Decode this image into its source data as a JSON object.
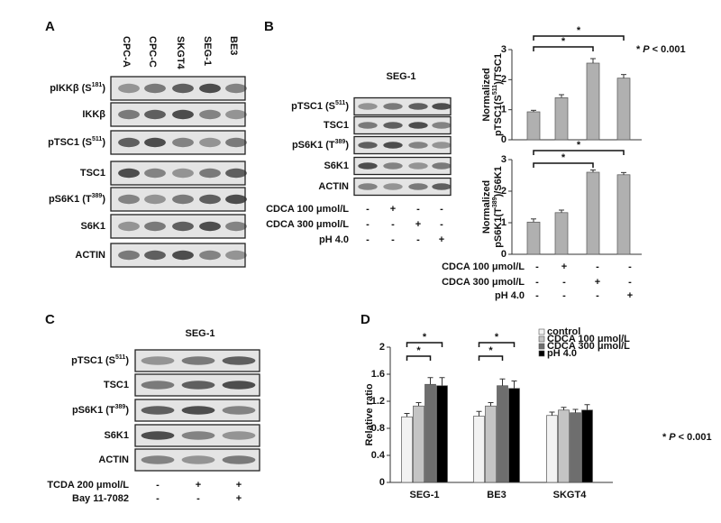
{
  "blots": [
    {
      "panel": "A",
      "lanes": [
        "CPC-A",
        "CPC-C",
        "SKGT4",
        "SEG-1",
        "BE3"
      ],
      "rows": [
        {
          "label": "pIKKβ (S",
          "sup": "181",
          "end": ")"
        },
        {
          "label": "IKKβ"
        },
        {
          "label": "pTSC1 (S",
          "sup": "511",
          "end": ")"
        },
        {
          "label": "TSC1"
        },
        {
          "label": "pS6K1 (T",
          "sup": "389",
          "end": ")"
        },
        {
          "label": "S6K1"
        },
        {
          "label": "ACTIN"
        }
      ]
    },
    {
      "panel": "B",
      "title": "SEG-1",
      "rows": [
        {
          "label": "pTSC1 (S",
          "sup": "511",
          "end": ")"
        },
        {
          "label": "TSC1"
        },
        {
          "label": "pS6K1 (T",
          "sup": "389",
          "end": ")"
        },
        {
          "label": "S6K1"
        },
        {
          "label": "ACTIN"
        }
      ],
      "treatments": [
        {
          "label": "CDCA 100 μmol/L",
          "signs": [
            "-",
            "+",
            "-",
            "-"
          ]
        },
        {
          "label": "CDCA 300 μmol/L",
          "signs": [
            "-",
            "-",
            "+",
            "-"
          ]
        },
        {
          "label": "pH 4.0",
          "signs": [
            "-",
            "-",
            "-",
            "+"
          ]
        }
      ]
    },
    {
      "panel": "C",
      "title": "SEG-1",
      "rows": [
        {
          "label": "pTSC1 (S",
          "sup": "511",
          "end": ")"
        },
        {
          "label": "TSC1"
        },
        {
          "label": "pS6K1 (T",
          "sup": "389",
          "end": ")"
        },
        {
          "label": "S6K1"
        },
        {
          "label": "ACTIN"
        }
      ],
      "treatments": [
        {
          "label": "TCDA 200 μmol/L",
          "signs": [
            "-",
            "+",
            "+"
          ]
        },
        {
          "label": "Bay 11-7082",
          "signs": [
            "-",
            "-",
            "+"
          ]
        }
      ]
    }
  ],
  "chart_data": [
    {
      "type": "bar",
      "ylabel": "Normalized",
      "ylabel2": {
        "label": "pTSC1(S",
        "sup": "511",
        "end": ")/TSC1"
      },
      "categories": [
        null,
        null,
        null,
        null
      ],
      "series": [
        {
          "color": "#b0b0b0",
          "values": [
            0.93,
            1.4,
            2.55,
            2.05
          ],
          "errors": [
            0.05,
            0.1,
            0.15,
            0.12
          ]
        }
      ],
      "ylim": [
        0,
        3
      ],
      "yticks": [
        0,
        1,
        2,
        3
      ],
      "annotations": [
        "*",
        "*"
      ],
      "note": [
        "*",
        "P",
        "< 0.001"
      ]
    },
    {
      "type": "bar",
      "ylabel": "Normalized",
      "ylabel2": {
        "label": "pS6K1(T",
        "sup": "389",
        "end": ")/S6K1"
      },
      "categories": [
        null,
        null,
        null,
        null
      ],
      "series": [
        {
          "color": "#b0b0b0",
          "values": [
            1.02,
            1.32,
            2.6,
            2.52
          ],
          "errors": [
            0.1,
            0.08,
            0.07,
            0.07
          ]
        }
      ],
      "ylim": [
        0,
        3
      ],
      "yticks": [
        0,
        1,
        2,
        3
      ],
      "annotations": [
        "*",
        "*"
      ],
      "treatments": [
        {
          "label": "CDCA 100 μmol/L",
          "signs": [
            "-",
            "+",
            "-",
            "-"
          ]
        },
        {
          "label": "CDCA 300 μmol/L",
          "signs": [
            "-",
            "-",
            "+",
            "-"
          ]
        },
        {
          "label": "pH 4.0",
          "signs": [
            "-",
            "-",
            "-",
            "+"
          ]
        }
      ]
    },
    {
      "type": "bar",
      "ylabel": "Relative ratio",
      "categories": [
        "SEG-1",
        "BE3",
        "SKGT4"
      ],
      "series": [
        {
          "name": "control",
          "color": "#f2f2f2",
          "values": [
            0.97,
            0.98,
            0.99
          ],
          "errors": [
            0.05,
            0.07,
            0.05
          ]
        },
        {
          "name": "CDCA 100 μmol/L",
          "color": "#c4c4c4",
          "values": [
            1.13,
            1.13,
            1.07
          ],
          "errors": [
            0.05,
            0.05,
            0.04
          ]
        },
        {
          "name": "CDCA 300 μmol/L",
          "color": "#6e6e6e",
          "values": [
            1.45,
            1.43,
            1.03
          ],
          "errors": [
            0.1,
            0.1,
            0.05
          ]
        },
        {
          "name": "pH 4.0",
          "color": "#000000",
          "values": [
            1.43,
            1.39,
            1.07
          ],
          "errors": [
            0.12,
            0.11,
            0.08
          ]
        }
      ],
      "ylim": [
        0,
        2
      ],
      "yticks": [
        0,
        0.4,
        0.8,
        1.2,
        1.6,
        2
      ],
      "annotations": [
        "*",
        "*",
        "*",
        "*"
      ],
      "note": [
        "*",
        "P",
        "< 0.001"
      ]
    }
  ]
}
